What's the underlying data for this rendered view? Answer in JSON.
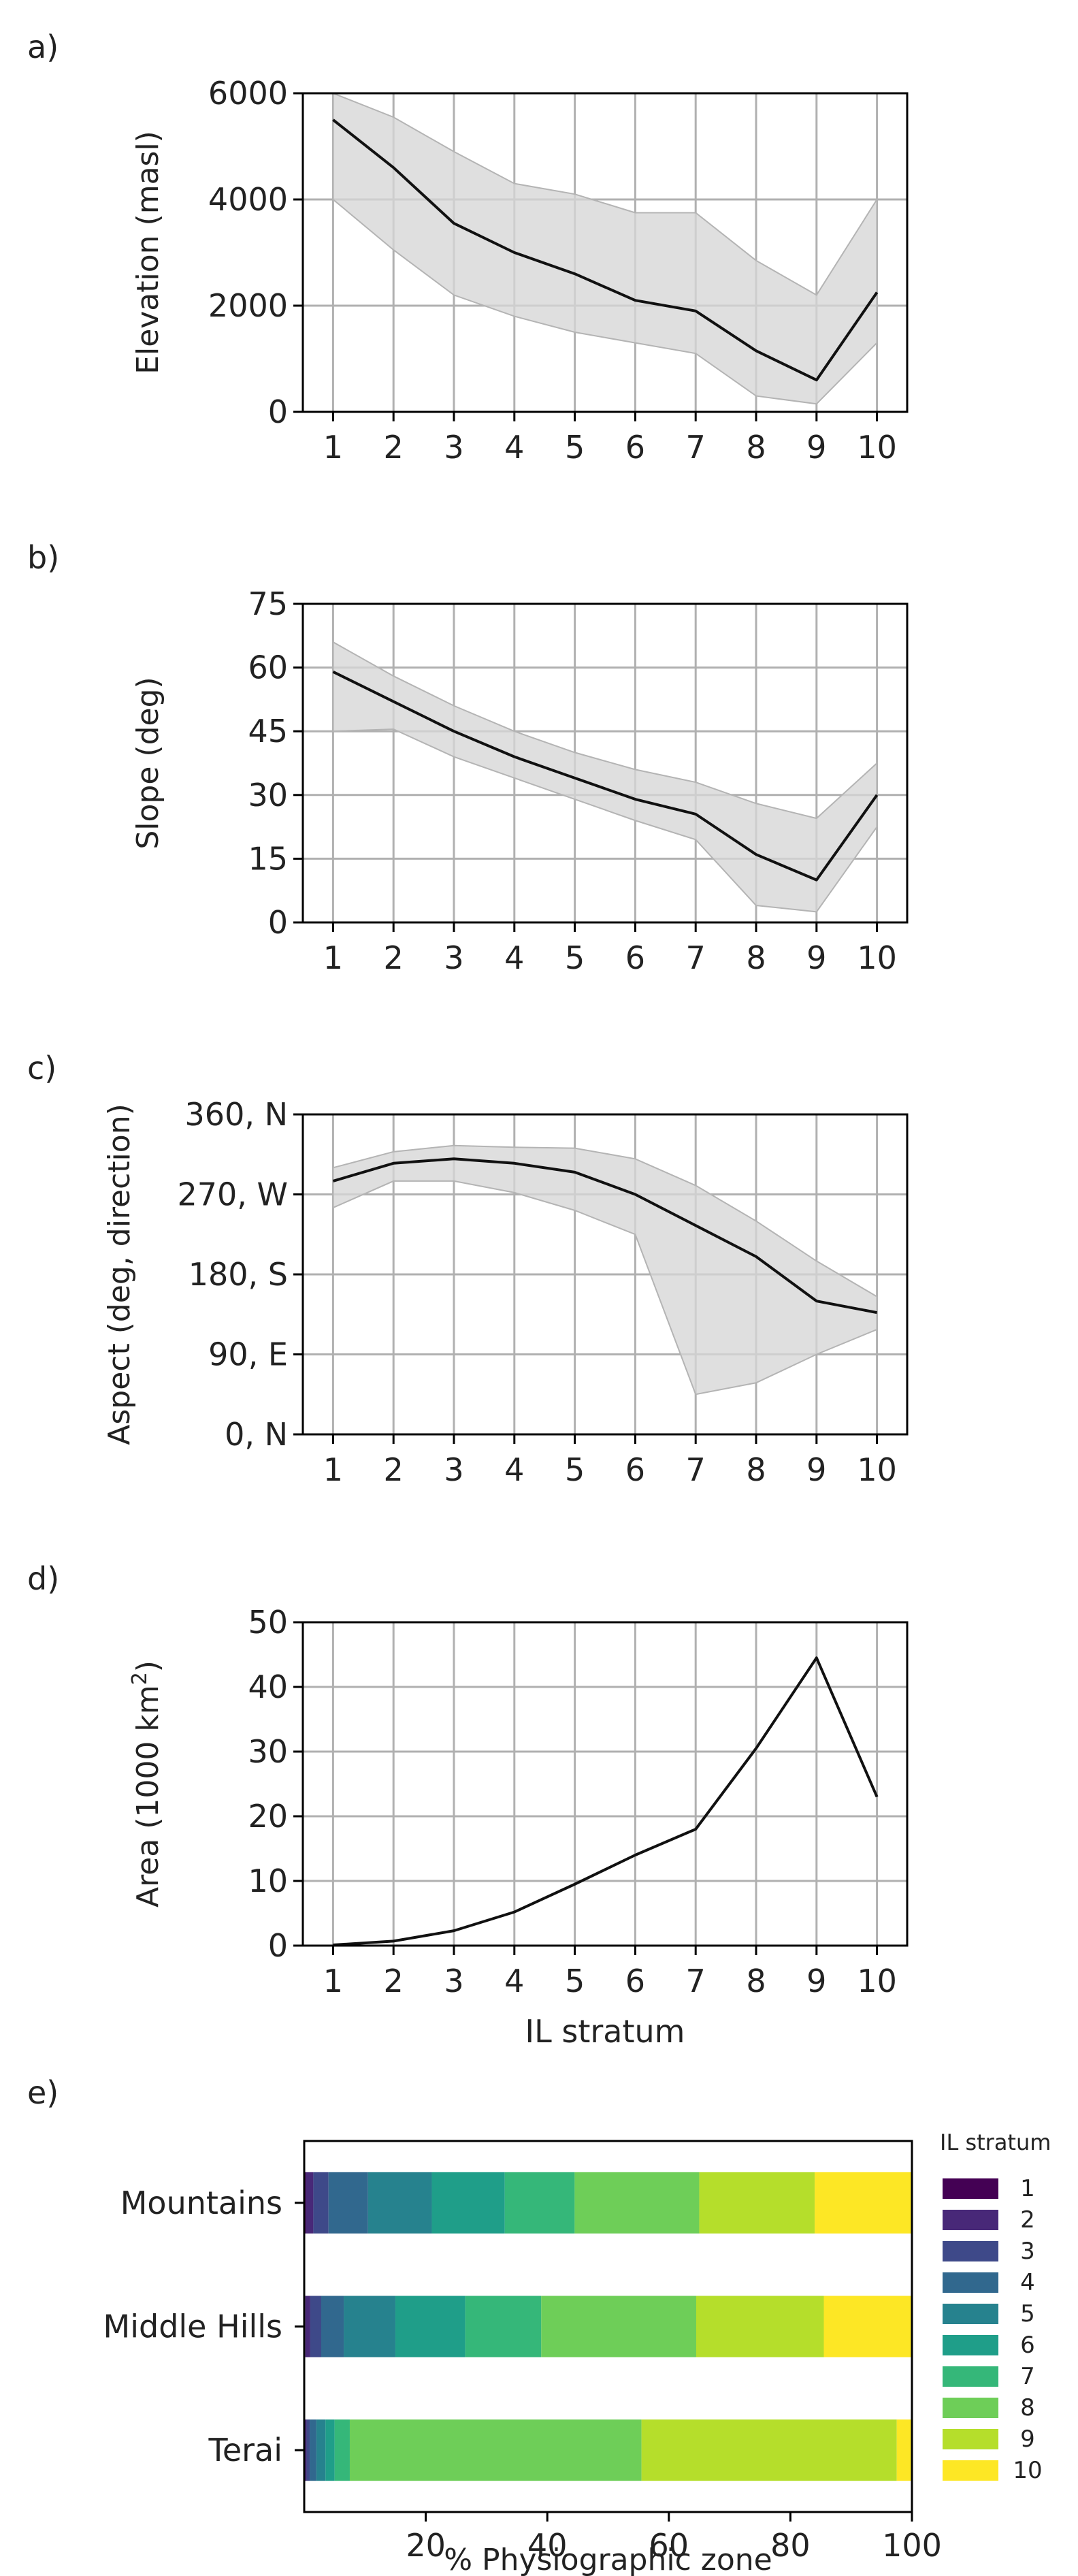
{
  "colors": {
    "line": "#111111",
    "band": "#d6d6d6",
    "band_edge": "#b4b4b4",
    "grid": "#b0b0b0",
    "axis": "#000000"
  },
  "chart_data": [
    {
      "id": "a",
      "type": "line",
      "panel_label": "a)",
      "xlabel": "",
      "ylabel": "Elevation (masl)",
      "x": [
        1,
        2,
        3,
        4,
        5,
        6,
        7,
        8,
        9,
        10
      ],
      "x_ticks": [
        "1",
        "2",
        "3",
        "4",
        "5",
        "6",
        "7",
        "8",
        "9",
        "10"
      ],
      "xlim": [
        0.5,
        10.5
      ],
      "ylim": [
        0,
        6000
      ],
      "y_ticks": [
        0,
        2000,
        4000,
        6000
      ],
      "y_tick_labels": [
        "0",
        "2000",
        "4000",
        "6000"
      ],
      "grid": true,
      "series": [
        {
          "name": "median",
          "values": [
            5500,
            4600,
            3550,
            3000,
            2600,
            2100,
            1900,
            1150,
            600,
            2250
          ]
        }
      ],
      "band": {
        "upper": [
          6000,
          5550,
          4900,
          4300,
          4100,
          3750,
          3750,
          2850,
          2200,
          4000
        ],
        "lower": [
          4000,
          3050,
          2200,
          1800,
          1500,
          1300,
          1100,
          300,
          150,
          1300
        ]
      }
    },
    {
      "id": "b",
      "type": "line",
      "panel_label": "b)",
      "xlabel": "",
      "ylabel": "Slope (deg)",
      "x": [
        1,
        2,
        3,
        4,
        5,
        6,
        7,
        8,
        9,
        10
      ],
      "x_ticks": [
        "1",
        "2",
        "3",
        "4",
        "5",
        "6",
        "7",
        "8",
        "9",
        "10"
      ],
      "xlim": [
        0.5,
        10.5
      ],
      "ylim": [
        0,
        75
      ],
      "y_ticks": [
        0,
        15,
        30,
        45,
        60,
        75
      ],
      "y_tick_labels": [
        "0",
        "15",
        "30",
        "45",
        "60",
        "75"
      ],
      "grid": true,
      "series": [
        {
          "name": "median",
          "values": [
            59,
            52,
            45,
            39,
            34,
            29,
            25.5,
            16,
            10,
            30
          ]
        }
      ],
      "band": {
        "upper": [
          66,
          58,
          51,
          45,
          40,
          36,
          33,
          28,
          24.5,
          37.5
        ],
        "lower": [
          45,
          45.5,
          39,
          34,
          29,
          24,
          19.5,
          4,
          2.5,
          22.5
        ]
      }
    },
    {
      "id": "c",
      "type": "line",
      "panel_label": "c)",
      "xlabel": "",
      "ylabel": "Aspect (deg, direction)",
      "x": [
        1,
        2,
        3,
        4,
        5,
        6,
        7,
        8,
        9,
        10
      ],
      "x_ticks": [
        "1",
        "2",
        "3",
        "4",
        "5",
        "6",
        "7",
        "8",
        "9",
        "10"
      ],
      "xlim": [
        0.5,
        10.5
      ],
      "ylim": [
        0,
        360
      ],
      "y_ticks": [
        0,
        90,
        180,
        270,
        360
      ],
      "y_tick_labels": [
        "0, N",
        "90, E",
        "180, S",
        "270, W",
        "360, N"
      ],
      "grid": true,
      "series": [
        {
          "name": "median",
          "values": [
            285,
            305,
            310,
            305,
            295,
            270,
            235,
            200,
            150,
            137
          ]
        }
      ],
      "band": {
        "upper": [
          300,
          318,
          325,
          323,
          322,
          310,
          280,
          240,
          195,
          155
        ],
        "lower": [
          255,
          285,
          285,
          272,
          252,
          225,
          45,
          58,
          90,
          118
        ]
      }
    },
    {
      "id": "d",
      "type": "line",
      "panel_label": "d)",
      "xlabel": "IL stratum",
      "ylabel": "Area (1000 km",
      "ylabel_sup": "2",
      "ylabel_end": ")",
      "x": [
        1,
        2,
        3,
        4,
        5,
        6,
        7,
        8,
        9,
        10
      ],
      "x_ticks": [
        "1",
        "2",
        "3",
        "4",
        "5",
        "6",
        "7",
        "8",
        "9",
        "10"
      ],
      "xlim": [
        0.5,
        10.5
      ],
      "ylim": [
        0,
        50
      ],
      "y_ticks": [
        0,
        10,
        20,
        30,
        40,
        50
      ],
      "y_tick_labels": [
        "0",
        "10",
        "20",
        "30",
        "40",
        "50"
      ],
      "grid": true,
      "series": [
        {
          "name": "area",
          "values": [
            0.1,
            0.7,
            2.3,
            5.2,
            9.5,
            14,
            18,
            30.5,
            44.5,
            23
          ]
        }
      ]
    },
    {
      "id": "e",
      "type": "bar",
      "orientation": "horizontal",
      "stacked": true,
      "panel_label": "e)",
      "xlabel": "% Physiographic zone",
      "ylabel": "",
      "categories": [
        "Mountains",
        "Middle Hills",
        "Terai"
      ],
      "xlim": [
        0,
        100
      ],
      "x_ticks": [
        20,
        40,
        60,
        80,
        100
      ],
      "x_tick_labels": [
        "20",
        "40",
        "60",
        "80",
        "100"
      ],
      "grid": false,
      "legend_title": "IL stratum",
      "legend_position": "right",
      "series": [
        {
          "name": "1",
          "color": "#440154",
          "values": [
            0.3,
            0.2,
            0.1
          ]
        },
        {
          "name": "2",
          "color": "#482878",
          "values": [
            1.2,
            0.8,
            0.3
          ]
        },
        {
          "name": "3",
          "color": "#3e4989",
          "values": [
            2.5,
            1.8,
            0.5
          ]
        },
        {
          "name": "4",
          "color": "#31688e",
          "values": [
            6.5,
            3.7,
            1.1
          ]
        },
        {
          "name": "5",
          "color": "#26828e",
          "values": [
            10.5,
            8.5,
            1.5
          ]
        },
        {
          "name": "6",
          "color": "#1f9e89",
          "values": [
            12.0,
            11.5,
            1.5
          ]
        },
        {
          "name": "7",
          "color": "#35b779",
          "values": [
            11.5,
            12.5,
            2.5
          ]
        },
        {
          "name": "8",
          "color": "#6ece58",
          "values": [
            20.5,
            25.5,
            48.0
          ]
        },
        {
          "name": "9",
          "color": "#b5de2b",
          "values": [
            19.0,
            21.0,
            42.0
          ]
        },
        {
          "name": "10",
          "color": "#fde725",
          "values": [
            16.0,
            14.5,
            2.5
          ]
        }
      ]
    }
  ]
}
